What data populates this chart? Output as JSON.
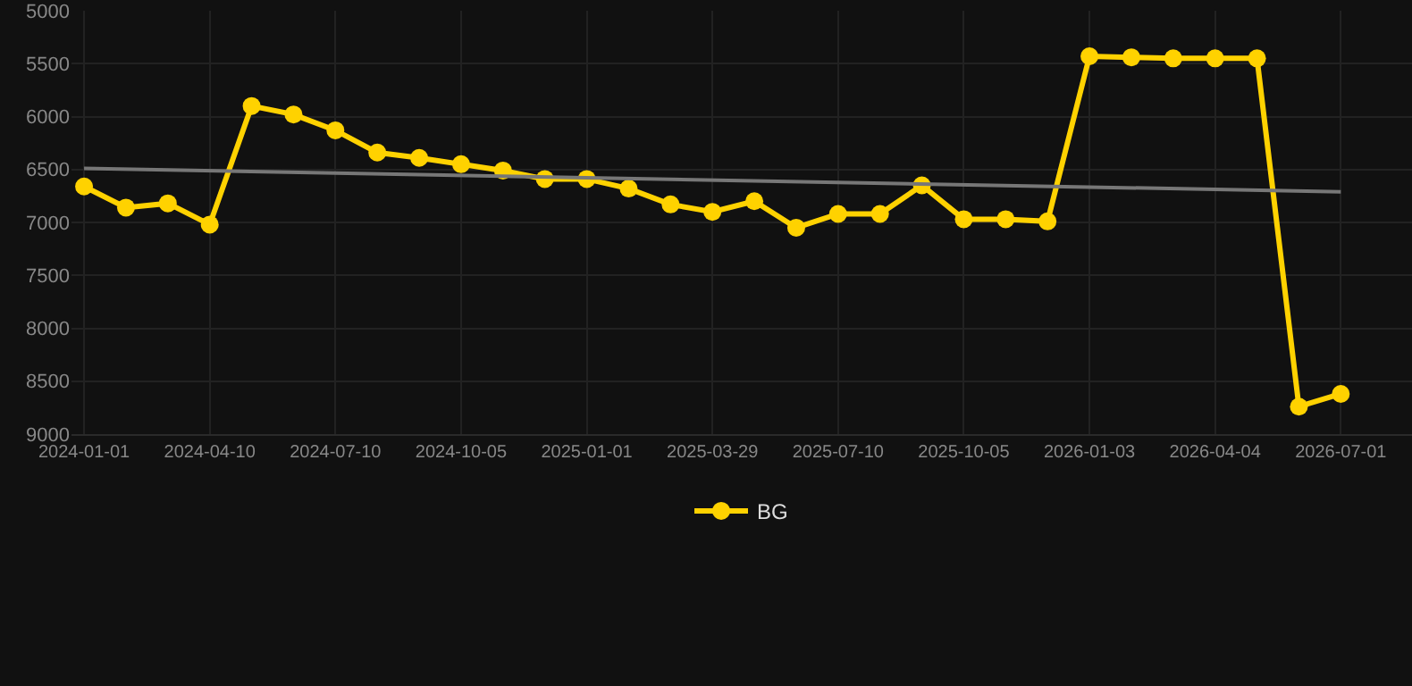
{
  "chart_data": {
    "type": "line",
    "categories": [
      "2024-01-01",
      null,
      null,
      "2024-04-10",
      null,
      null,
      "2024-07-10",
      null,
      null,
      "2024-10-05",
      null,
      null,
      "2025-01-01",
      null,
      null,
      "2025-03-29",
      null,
      null,
      "2025-07-10",
      null,
      null,
      "2025-10-05",
      null,
      null,
      "2026-01-03",
      null,
      null,
      "2026-04-04",
      null,
      null,
      "2026-07-01"
    ],
    "series": [
      {
        "name": "BG",
        "color": "#ffd200",
        "marker": "circle",
        "values": [
          6660,
          6860,
          6820,
          7020,
          5900,
          5980,
          6130,
          6340,
          6390,
          6450,
          6510,
          6590,
          6590,
          6680,
          6830,
          6900,
          6800,
          7050,
          6920,
          6920,
          6650,
          6970,
          6970,
          6990,
          5430,
          5440,
          5450,
          5450,
          5450,
          8740,
          8620
        ]
      },
      {
        "color": "#777777",
        "marker": "none",
        "values": [
          6490,
          null,
          null,
          null,
          null,
          null,
          null,
          null,
          null,
          null,
          null,
          null,
          null,
          null,
          null,
          null,
          null,
          null,
          null,
          null,
          null,
          null,
          null,
          null,
          null,
          null,
          null,
          null,
          null,
          null,
          6710
        ]
      }
    ],
    "ylim": [
      9000,
      5000
    ],
    "yticks": [
      5000,
      5500,
      6000,
      6500,
      7000,
      7500,
      8000,
      8500,
      9000
    ],
    "grid": true,
    "legend": "bottom"
  }
}
